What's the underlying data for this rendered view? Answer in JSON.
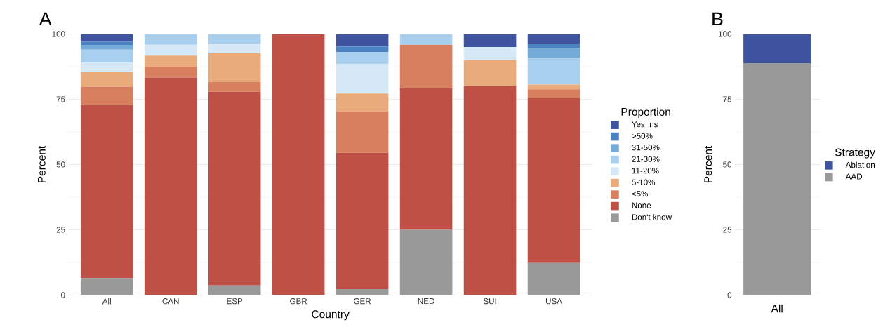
{
  "chart_data": [
    {
      "type": "bar",
      "stacked": true,
      "title": "A",
      "xlabel": "Country",
      "ylabel": "Percent",
      "legend_title": "Proportion",
      "legend": "right",
      "grid": "y",
      "categories": [
        "All",
        "CAN",
        "ESP",
        "GBR",
        "GER",
        "NED",
        "SUI",
        "USA"
      ],
      "ylim": [
        0,
        100
      ],
      "yticks": [
        0,
        25,
        50,
        75,
        100
      ],
      "series": [
        {
          "name": "Don't know",
          "color": "#999999",
          "values": [
            6.5,
            null,
            3.7,
            null,
            2.3,
            25,
            null,
            12.3
          ]
        },
        {
          "name": "None",
          "color": "#bf5045",
          "values": [
            66.3,
            83.3,
            74.2,
            100,
            52.2,
            54.2,
            80,
            63.1
          ]
        },
        {
          "name": "<5%",
          "color": "#d77f5e",
          "values": [
            7.0,
            4.2,
            3.7,
            null,
            15.9,
            16.7,
            null,
            3.4
          ]
        },
        {
          "name": "5-10%",
          "color": "#e9ab7b",
          "values": [
            5.5,
            4.2,
            11.0,
            null,
            6.8,
            null,
            10,
            1.8
          ]
        },
        {
          "name": "11-20%",
          "color": "#d4e8f6",
          "values": [
            3.7,
            4.2,
            3.7,
            null,
            11.2,
            null,
            5,
            null
          ]
        },
        {
          "name": "21-30%",
          "color": "#a8cfee",
          "values": [
            5.0,
            4.1,
            3.7,
            null,
            4.7,
            4.1,
            null,
            10.4
          ]
        },
        {
          "name": "31-50%",
          "color": "#74aad8",
          "values": [
            1.8,
            null,
            null,
            null,
            null,
            null,
            null,
            3.7
          ]
        },
        {
          "name": ">50%",
          "color": "#4a82c3",
          "values": [
            1.3,
            null,
            null,
            null,
            2.1,
            null,
            null,
            1.6
          ]
        },
        {
          "name": "Yes, ns",
          "color": "#3f54a0",
          "values": [
            2.9,
            null,
            null,
            null,
            4.8,
            null,
            5,
            3.7
          ]
        }
      ]
    },
    {
      "type": "bar",
      "stacked": true,
      "title": "B",
      "xlabel": "All",
      "ylabel": "Percent",
      "legend_title": "Strategy",
      "legend": "right",
      "grid": "y",
      "categories": [
        null
      ],
      "ylim": [
        0,
        100
      ],
      "yticks": [
        0,
        25,
        50,
        75,
        100
      ],
      "series": [
        {
          "name": "AAD",
          "color": "#999999",
          "values": [
            88.8
          ]
        },
        {
          "name": "Ablation",
          "color": "#3f54a0",
          "values": [
            11.2
          ]
        }
      ]
    }
  ]
}
